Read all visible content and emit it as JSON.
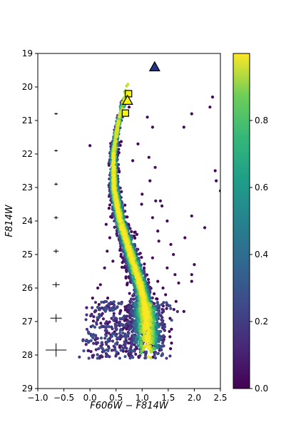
{
  "chart_data": {
    "type": "scatter",
    "xlabel": "F606W − F814W",
    "ylabel": "F814W",
    "xlim": [
      -1.0,
      2.5
    ],
    "ylim": [
      29,
      19
    ],
    "y_inverted": true,
    "xticks": [
      -1.0,
      -0.5,
      0.0,
      0.5,
      1.0,
      1.5,
      2.0,
      2.5
    ],
    "xtick_labels": [
      "−1.0",
      "−0.5",
      "0.0",
      "0.5",
      "1.0",
      "1.5",
      "2.0",
      "2.5"
    ],
    "yticks": [
      19,
      20,
      21,
      22,
      23,
      24,
      25,
      26,
      27,
      28,
      29
    ],
    "ytick_labels": [
      "19",
      "20",
      "21",
      "22",
      "23",
      "24",
      "25",
      "26",
      "27",
      "28",
      "29"
    ],
    "grid": false,
    "colormap": "viridis",
    "colorbar": {
      "range": [
        0.0,
        1.0
      ],
      "ticks": [
        0.0,
        0.2,
        0.4,
        0.6,
        0.8
      ],
      "tick_labels": [
        "0.0",
        "0.2",
        "0.4",
        "0.6",
        "0.8"
      ]
    },
    "main_sequence_ridge": [
      {
        "mag": 20.0,
        "color": 0.72
      },
      {
        "mag": 21.0,
        "color": 0.55
      },
      {
        "mag": 22.0,
        "color": 0.45
      },
      {
        "mag": 23.0,
        "color": 0.46
      },
      {
        "mag": 24.0,
        "color": 0.58
      },
      {
        "mag": 25.0,
        "color": 0.78
      },
      {
        "mag": 26.0,
        "color": 0.98
      },
      {
        "mag": 26.5,
        "color": 1.05
      },
      {
        "mag": 27.0,
        "color": 1.08
      },
      {
        "mag": 27.3,
        "color": 1.1
      }
    ],
    "error_bars": [
      {
        "x": -0.65,
        "y": 20.8,
        "xerr": 0.01,
        "yerr": 0.02
      },
      {
        "x": -0.65,
        "y": 21.9,
        "xerr": 0.02,
        "yerr": 0.03
      },
      {
        "x": -0.65,
        "y": 22.9,
        "xerr": 0.03,
        "yerr": 0.04
      },
      {
        "x": -0.65,
        "y": 23.9,
        "xerr": 0.04,
        "yerr": 0.05
      },
      {
        "x": -0.65,
        "y": 24.9,
        "xerr": 0.05,
        "yerr": 0.06
      },
      {
        "x": -0.65,
        "y": 25.9,
        "xerr": 0.07,
        "yerr": 0.08
      },
      {
        "x": -0.65,
        "y": 26.9,
        "xerr": 0.11,
        "yerr": 0.12
      },
      {
        "x": -0.65,
        "y": 27.85,
        "xerr": 0.2,
        "yerr": 0.2
      }
    ],
    "highlighted_points": [
      {
        "x": 0.74,
        "y": 20.2,
        "marker": "square",
        "fill": "#f5f511"
      },
      {
        "x": 0.72,
        "y": 20.4,
        "marker": "triangle",
        "fill": "#f5f511"
      },
      {
        "x": 0.68,
        "y": 20.78,
        "marker": "square",
        "fill": "#f5f511"
      },
      {
        "x": 1.24,
        "y": 19.4,
        "marker": "triangle",
        "fill": "#223388"
      }
    ],
    "field_stars": [
      [
        0.0,
        21.75
      ],
      [
        0.6,
        21.0
      ],
      [
        0.75,
        20.6
      ],
      [
        1.1,
        20.9
      ],
      [
        1.2,
        21.2
      ],
      [
        2.35,
        20.3
      ],
      [
        2.3,
        20.6
      ],
      [
        1.8,
        21.2
      ],
      [
        1.95,
        20.8
      ],
      [
        0.92,
        21.7
      ],
      [
        0.82,
        22.2
      ],
      [
        1.13,
        22.1
      ],
      [
        1.25,
        22.4
      ],
      [
        2.4,
        22.5
      ],
      [
        1.15,
        22.8
      ],
      [
        2.42,
        22.8
      ],
      [
        2.5,
        23.1
      ],
      [
        1.0,
        23.2
      ],
      [
        1.35,
        23.4
      ],
      [
        0.99,
        23.5
      ],
      [
        1.26,
        23.4
      ],
      [
        1.38,
        23.55
      ],
      [
        1.2,
        23.9
      ],
      [
        1.48,
        24.0
      ],
      [
        1.95,
        23.85
      ],
      [
        2.2,
        24.2
      ],
      [
        1.82,
        24.5
      ],
      [
        1.3,
        24.3
      ],
      [
        1.32,
        24.6
      ],
      [
        1.55,
        24.7
      ],
      [
        1.2,
        25.1
      ],
      [
        0.9,
        24.4
      ],
      [
        1.6,
        25.0
      ],
      [
        1.48,
        25.4
      ],
      [
        1.63,
        25.6
      ],
      [
        1.95,
        25.6
      ],
      [
        1.7,
        25.85
      ],
      [
        1.4,
        26.0
      ],
      [
        2.0,
        25.3
      ],
      [
        0.31,
        24.1
      ],
      [
        0.33,
        24.9
      ],
      [
        0.28,
        25.4
      ],
      [
        0.2,
        25.9
      ],
      [
        0.15,
        26.0
      ],
      [
        0.34,
        26.3
      ],
      [
        0.44,
        25.2
      ],
      [
        1.45,
        26.2
      ],
      [
        1.65,
        26.4
      ],
      [
        1.8,
        26.7
      ],
      [
        1.95,
        25.8
      ],
      [
        1.3,
        25.8
      ],
      [
        0.05,
        26.3
      ],
      [
        0.38,
        24.5
      ]
    ]
  }
}
